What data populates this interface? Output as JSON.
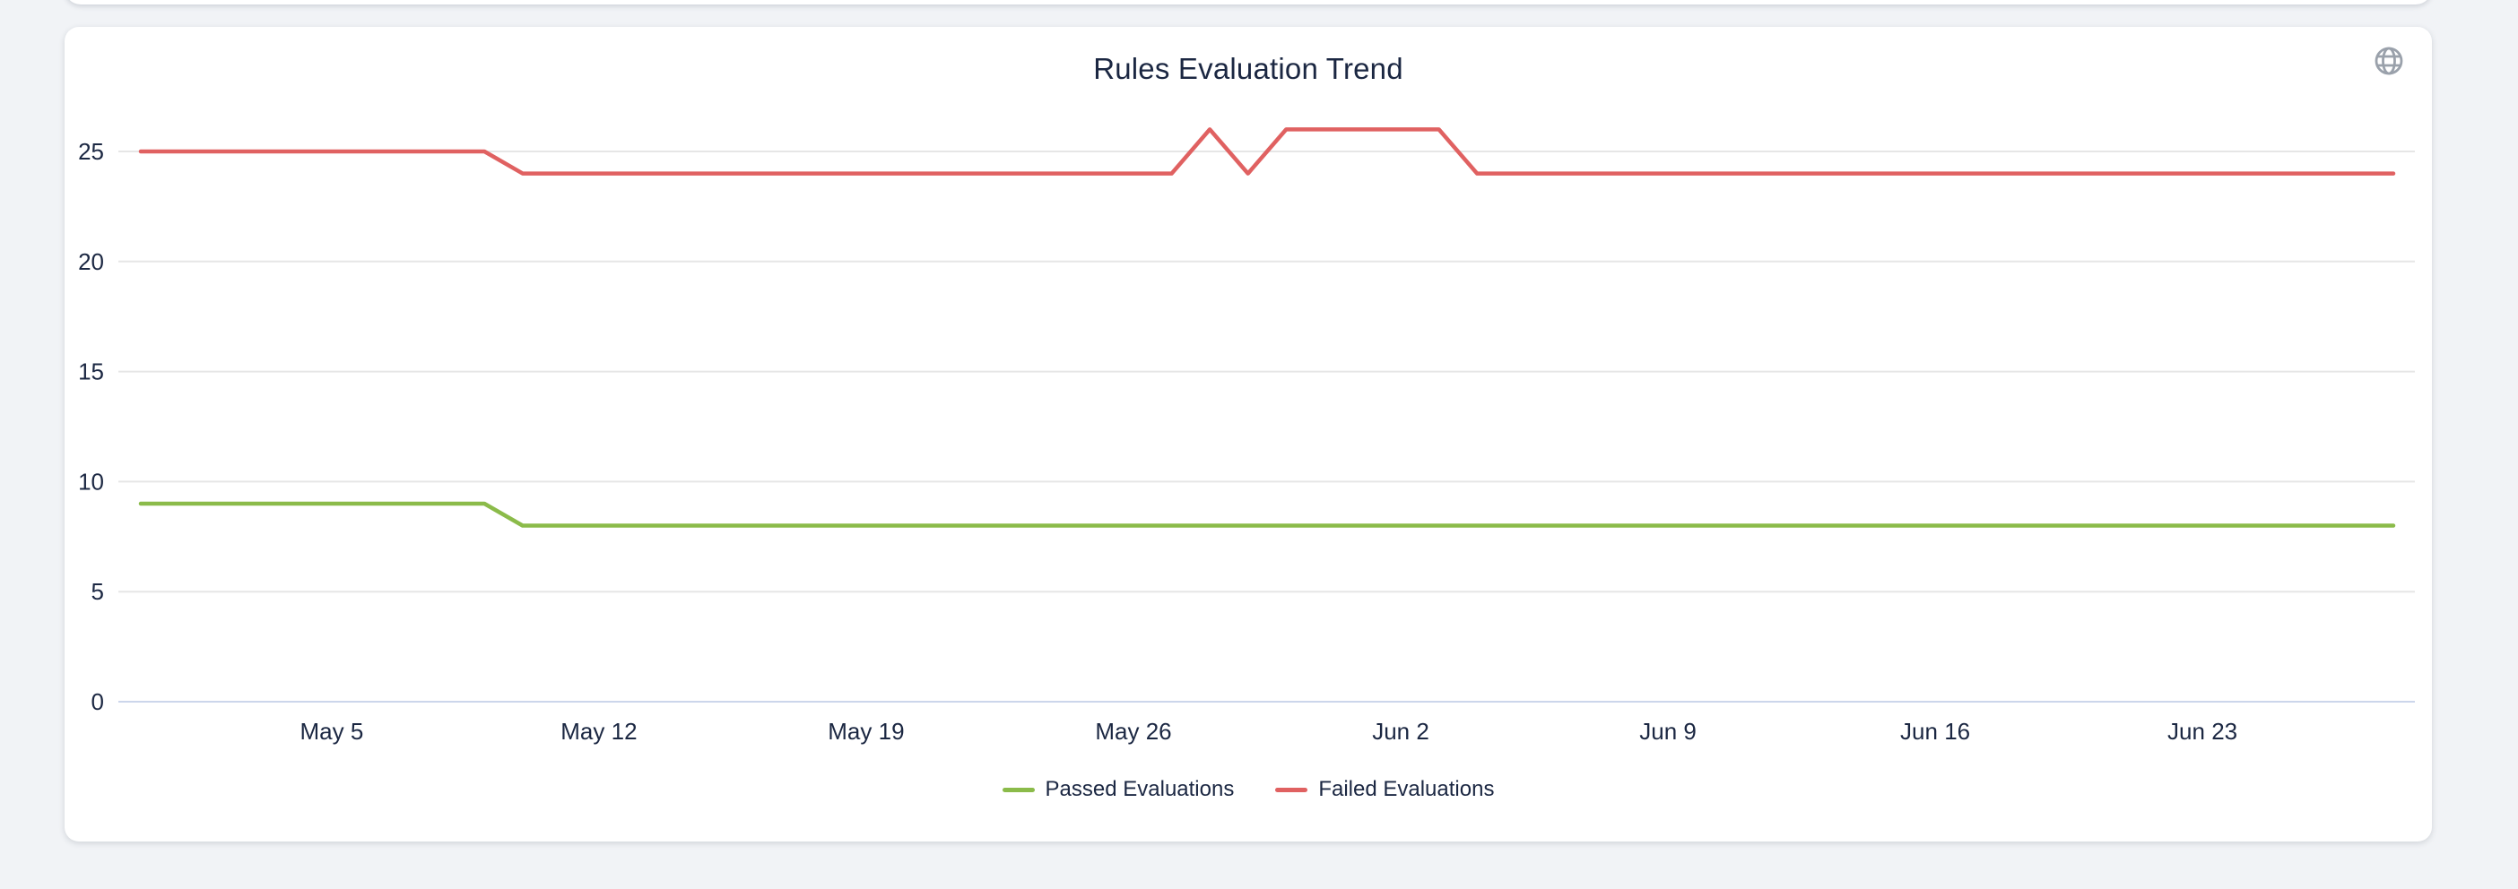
{
  "page_background": "#f1f3f6",
  "card": {
    "title": "Rules Evaluation Trend",
    "header_icon": "globe-icon"
  },
  "colors": {
    "grid_line": "#e6e6e6",
    "axis_line": "#ccd6eb",
    "text": "#1b2742",
    "icon": "#9aa1ab",
    "passed": "#8bbb4a",
    "failed": "#e06161"
  },
  "chart_data": {
    "type": "line",
    "title": "Rules Evaluation Trend",
    "xlabel": "",
    "ylabel": "",
    "grid": true,
    "legend_position": "bottom",
    "ylim": [
      0,
      26.5
    ],
    "y_ticks": [
      0,
      5,
      10,
      15,
      20,
      25
    ],
    "x_tick_labels": [
      "May 5",
      "May 12",
      "May 19",
      "May 26",
      "Jun 2",
      "Jun 9",
      "Jun 16",
      "Jun 23"
    ],
    "categories": [
      "Apr 30",
      "May 1",
      "May 2",
      "May 3",
      "May 4",
      "May 5",
      "May 6",
      "May 7",
      "May 8",
      "May 9",
      "May 10",
      "May 11",
      "May 12",
      "May 13",
      "May 14",
      "May 15",
      "May 16",
      "May 17",
      "May 18",
      "May 19",
      "May 20",
      "May 21",
      "May 22",
      "May 23",
      "May 24",
      "May 25",
      "May 26",
      "May 27",
      "May 28",
      "May 29",
      "May 30",
      "May 31",
      "Jun 1",
      "Jun 2",
      "Jun 3",
      "Jun 4",
      "Jun 5",
      "Jun 6",
      "Jun 7",
      "Jun 8",
      "Jun 9",
      "Jun 10",
      "Jun 11",
      "Jun 12",
      "Jun 13",
      "Jun 14",
      "Jun 15",
      "Jun 16",
      "Jun 17",
      "Jun 18",
      "Jun 19",
      "Jun 20",
      "Jun 21",
      "Jun 22",
      "Jun 23",
      "Jun 24",
      "Jun 25",
      "Jun 26",
      "Jun 27",
      "Jun 28"
    ],
    "series": [
      {
        "name": "Passed Evaluations",
        "color": "#8bbb4a",
        "values": [
          9,
          9,
          9,
          9,
          9,
          9,
          9,
          9,
          9,
          9,
          8,
          8,
          8,
          8,
          8,
          8,
          8,
          8,
          8,
          8,
          8,
          8,
          8,
          8,
          8,
          8,
          8,
          8,
          8,
          8,
          8,
          8,
          8,
          8,
          8,
          8,
          8,
          8,
          8,
          8,
          8,
          8,
          8,
          8,
          8,
          8,
          8,
          8,
          8,
          8,
          8,
          8,
          8,
          8,
          8,
          8,
          8,
          8,
          8,
          8
        ]
      },
      {
        "name": "Failed Evaluations",
        "color": "#e06161",
        "values": [
          25,
          25,
          25,
          25,
          25,
          25,
          25,
          25,
          25,
          25,
          24,
          24,
          24,
          24,
          24,
          24,
          24,
          24,
          24,
          24,
          24,
          24,
          24,
          24,
          24,
          24,
          24,
          24,
          26,
          24,
          26,
          26,
          26,
          26,
          26,
          24,
          24,
          24,
          24,
          24,
          24,
          24,
          24,
          24,
          24,
          24,
          24,
          24,
          24,
          24,
          24,
          24,
          24,
          24,
          24,
          24,
          24,
          24,
          24,
          24
        ]
      }
    ]
  }
}
